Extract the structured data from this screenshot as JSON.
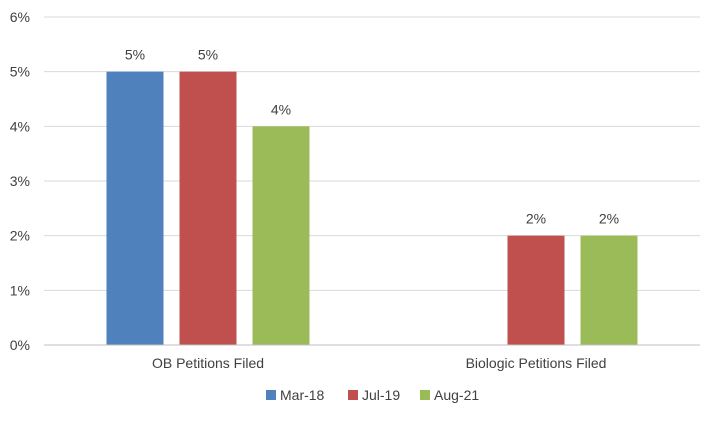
{
  "chart_data": {
    "type": "bar",
    "categories": [
      "OB Petitions Filed",
      "Biologic Petitions Filed"
    ],
    "series": [
      {
        "name": "Mar-18",
        "color": "#4F81BD",
        "values": [
          5,
          null
        ],
        "labels": [
          "5%",
          ""
        ]
      },
      {
        "name": "Jul-19",
        "color": "#C0504D",
        "values": [
          5,
          2
        ],
        "labels": [
          "5%",
          "2%"
        ]
      },
      {
        "name": "Aug-21",
        "color": "#9BBB59",
        "values": [
          4,
          2
        ],
        "labels": [
          "4%",
          "2%"
        ]
      }
    ],
    "yticks": [
      "0%",
      "1%",
      "2%",
      "3%",
      "4%",
      "5%",
      "6%"
    ],
    "ylim": [
      0,
      6
    ],
    "grid": true,
    "legend_position": "bottom"
  }
}
